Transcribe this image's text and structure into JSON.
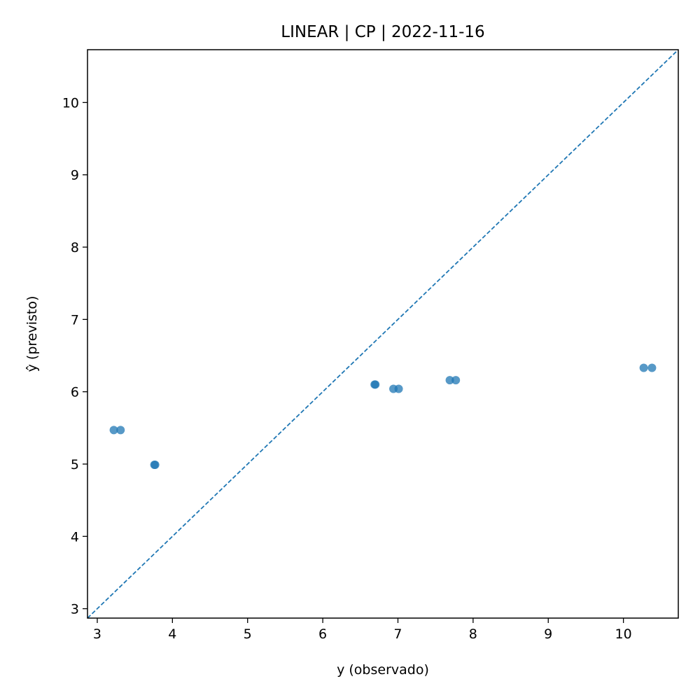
{
  "chart_data": {
    "type": "scatter",
    "title": "LINEAR | CP | 2022-11-16",
    "xlabel": "y (observado)",
    "ylabel": "ŷ (previsto)",
    "xlim": [
      2.87,
      10.73
    ],
    "ylim": [
      2.87,
      10.73
    ],
    "xticks": [
      "3",
      "4",
      "5",
      "6",
      "7",
      "8",
      "9",
      "10"
    ],
    "yticks": [
      "3",
      "4",
      "5",
      "6",
      "7",
      "8",
      "9",
      "10"
    ],
    "grid": false,
    "reference_line": {
      "type": "identity",
      "style": "dashed",
      "color": "#1f77b4"
    },
    "series": [
      {
        "color": "#1f77b4",
        "points": [
          {
            "x": 3.22,
            "y": 5.47
          },
          {
            "x": 3.31,
            "y": 5.47
          },
          {
            "x": 3.76,
            "y": 4.99
          },
          {
            "x": 3.77,
            "y": 4.99
          },
          {
            "x": 6.69,
            "y": 6.1
          },
          {
            "x": 6.7,
            "y": 6.1
          },
          {
            "x": 6.94,
            "y": 6.04
          },
          {
            "x": 7.01,
            "y": 6.04
          },
          {
            "x": 7.69,
            "y": 6.16
          },
          {
            "x": 7.77,
            "y": 6.16
          },
          {
            "x": 10.27,
            "y": 6.33
          },
          {
            "x": 10.38,
            "y": 6.33
          }
        ]
      }
    ]
  }
}
